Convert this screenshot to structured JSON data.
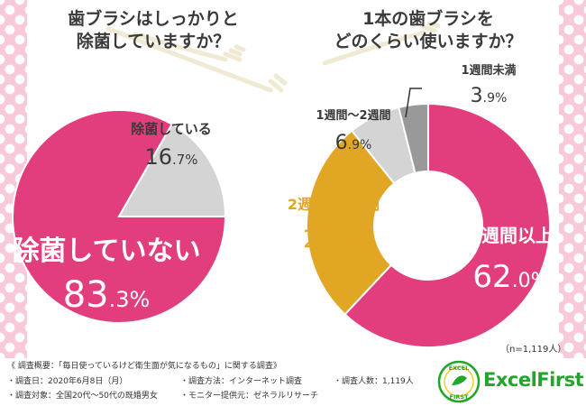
{
  "charts": [
    {
      "title_line1": "歯ブラシはしっかりと",
      "title_line2": "除菌していますか？"
    },
    {
      "title_line1": "1本の歯ブラシを",
      "title_line2": "どのくらい使いますか？"
    }
  ],
  "sample_note": "（n=1,119人）",
  "footer": {
    "survey_title": "《 調査概要：「毎日使っているけど衛生面が気になるもの」に関する調査》",
    "date": "・調査日：2020年6月8日（月）",
    "method": "・調査方法：インターネット調査",
    "count": "・調査人数：1,119人",
    "target": "・調査対象：全国20代〜50代の既婚男女",
    "provider": "・モニター提供元：ゼネラルリサーチ"
  },
  "brand": {
    "name": "ExcelFirst",
    "badge_top": "EXCEL",
    "badge_bottom": "FIRST"
  },
  "colors": {
    "pink": "#e23e7d",
    "gray": "#d4d4d4",
    "dark_gray": "#999999",
    "gold": "#e2a625",
    "background_pattern": "#f7c9d9",
    "brand_green": "#22a52b"
  },
  "chart_data": [
    {
      "type": "pie",
      "labels": [
        "除菌していない",
        "除菌している"
      ],
      "values": [
        83.3,
        16.7
      ],
      "display": [
        "83.3%",
        "16.7%"
      ],
      "unit": "%"
    },
    {
      "type": "pie",
      "donut": true,
      "labels": [
        "4週間以上",
        "2週間〜4週間",
        "1週間〜2週間",
        "1週間未満"
      ],
      "values": [
        62.0,
        27.2,
        6.9,
        3.9
      ],
      "display": [
        "62.0%",
        "27.2%",
        "6.9%",
        "3.9%"
      ],
      "unit": "%"
    }
  ]
}
